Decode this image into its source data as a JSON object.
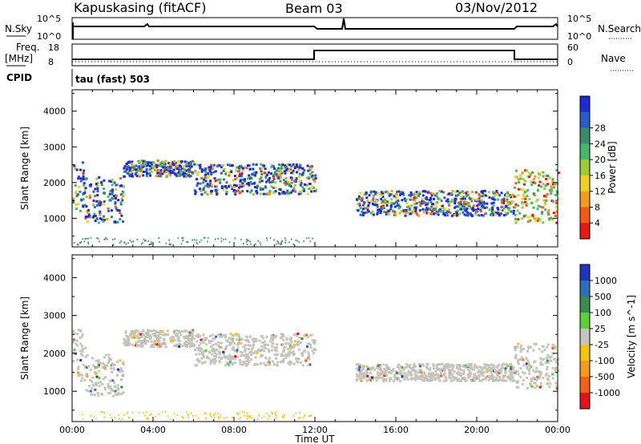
{
  "header": {
    "title": "Kapuskasing (fitACF)",
    "beam": "Beam 03",
    "date": "03/Nov/2012"
  },
  "top_panels": {
    "nsky_label": "N.Sky",
    "nsearch_label": "N.Search",
    "freq_label_1": "Freq.",
    "freq_label_2": "[MHz]",
    "nave_label": "Nave",
    "cpid_label": "CPID",
    "cpid_value": "tau (fast) 503",
    "nsky_ticks": [
      "10^5",
      "10^0"
    ],
    "nsearch_ticks": [
      "10^5",
      "10^0"
    ],
    "freq_ticks": [
      "18",
      "8"
    ],
    "nave_ticks": [
      "60",
      "0"
    ]
  },
  "chart_data": [
    {
      "type": "heatmap",
      "name": "power",
      "ylabel": "Slant Range [km]",
      "xlabel": "Time UT",
      "yticks": [
        "1000",
        "2000",
        "3000",
        "4000"
      ],
      "ylim": [
        200,
        4600
      ],
      "xlim": [
        0,
        24
      ],
      "xticks": [
        "00:00",
        "04:00",
        "08:00",
        "12:00",
        "16:00",
        "20:00",
        "00:00"
      ],
      "colorbar": {
        "label": "Power [dB]",
        "tick_labels": [
          "4",
          "8",
          "12",
          "16",
          "20",
          "24",
          "28"
        ],
        "colors": [
          "#1e2ad6",
          "#2a5dc8",
          "#3b8a6a",
          "#45b86a",
          "#9ccc33",
          "#f0d020",
          "#f59b20",
          "#f25a15",
          "#e41a10"
        ]
      },
      "regions": [
        {
          "t": [
            0.0,
            0.6
          ],
          "range": [
            1100,
            2600
          ]
        },
        {
          "t": [
            0.6,
            2.5
          ],
          "range": [
            900,
            2200
          ]
        },
        {
          "t": [
            2.5,
            6.0
          ],
          "range": [
            2200,
            2650
          ]
        },
        {
          "t": [
            6.0,
            12.0
          ],
          "range": [
            1700,
            2550
          ]
        },
        {
          "t": [
            14.0,
            21.8
          ],
          "range": [
            1100,
            1800
          ]
        },
        {
          "t": [
            21.8,
            24.0
          ],
          "range": [
            900,
            2400
          ]
        }
      ]
    },
    {
      "type": "heatmap",
      "name": "velocity",
      "ylabel": "Slant Range [km]",
      "xlabel": "Time UT",
      "yticks": [
        "1000",
        "2000",
        "3000",
        "4000"
      ],
      "ylim": [
        200,
        4600
      ],
      "xlim": [
        0,
        24
      ],
      "xticks": [
        "00:00",
        "04:00",
        "08:00",
        "12:00",
        "16:00",
        "20:00",
        "00:00"
      ],
      "colorbar": {
        "label": "Velocity [m s^-1]",
        "tick_labels": [
          "1000",
          "500",
          "100",
          "25",
          "-25",
          "-100",
          "-500",
          "-1000"
        ],
        "colors": [
          "#2033c0",
          "#2d6fb5",
          "#3c8a4e",
          "#5ccf3a",
          "#c4c4bc",
          "#f2c40c",
          "#f59a19",
          "#f2611a",
          "#e2141a"
        ]
      },
      "regions": [
        {
          "t": [
            0.0,
            0.6
          ],
          "range": [
            1300,
            2700
          ]
        },
        {
          "t": [
            0.6,
            2.5
          ],
          "range": [
            900,
            2000
          ]
        },
        {
          "t": [
            2.5,
            6.0
          ],
          "range": [
            2200,
            2650
          ]
        },
        {
          "t": [
            6.0,
            12.0
          ],
          "range": [
            1700,
            2550
          ]
        },
        {
          "t": [
            14.0,
            21.8
          ],
          "range": [
            1300,
            1750
          ]
        },
        {
          "t": [
            21.8,
            24.0
          ],
          "range": [
            1100,
            2300
          ]
        }
      ]
    }
  ]
}
